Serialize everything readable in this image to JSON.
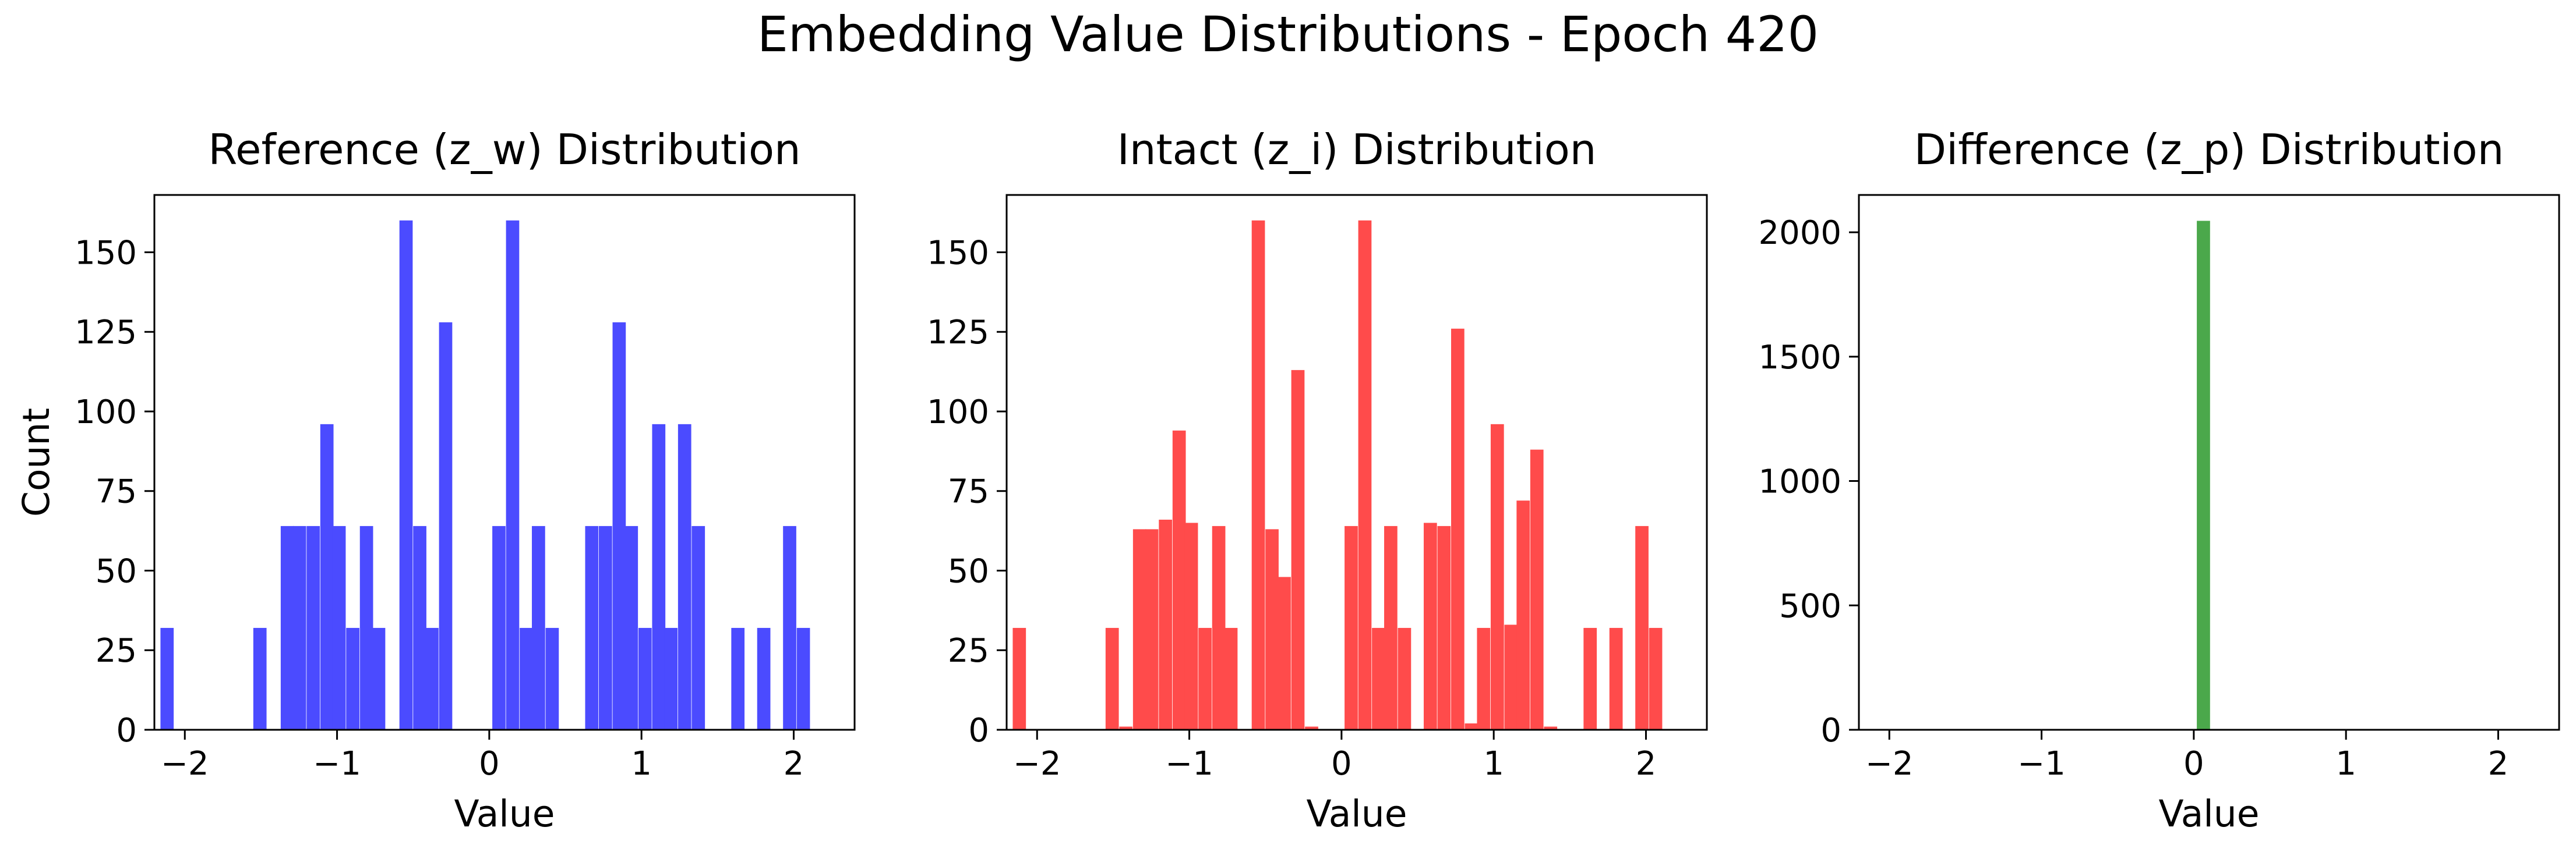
{
  "figure": {
    "suptitle": "Embedding Value Distributions - Epoch 420"
  },
  "chart_data": [
    {
      "type": "bar",
      "title": "Reference (z_w) Distribution",
      "xlabel": "Value",
      "ylabel": "Count",
      "color": "#4B4BFF",
      "xlim": [
        -2.2,
        2.4
      ],
      "ylim": [
        0,
        168
      ],
      "xticks": [
        -2,
        -1,
        0,
        1,
        2
      ],
      "xtick_labels": [
        "−2",
        "−1",
        "0",
        "1",
        "2"
      ],
      "yticks": [
        0,
        25,
        50,
        75,
        100,
        125,
        150
      ],
      "ytick_labels": [
        "0",
        "25",
        "50",
        "75",
        "100",
        "125",
        "150"
      ],
      "bin_width": 0.0869,
      "x": [
        -2.16,
        -1.55,
        -1.37,
        -1.29,
        -1.2,
        -1.11,
        -1.03,
        -0.94,
        -0.85,
        -0.77,
        -0.59,
        -0.5,
        -0.42,
        -0.33,
        0.02,
        0.11,
        0.2,
        0.28,
        0.37,
        0.63,
        0.72,
        0.81,
        0.89,
        0.98,
        1.07,
        1.15,
        1.24,
        1.33,
        1.59,
        1.76,
        1.93,
        2.02
      ],
      "values": [
        32,
        32,
        64,
        64,
        64,
        96,
        64,
        32,
        64,
        32,
        160,
        64,
        32,
        128,
        64,
        160,
        32,
        64,
        32,
        64,
        64,
        128,
        64,
        32,
        96,
        32,
        96,
        64,
        32,
        32,
        64,
        32
      ]
    },
    {
      "type": "bar",
      "title": "Intact (z_i) Distribution",
      "xlabel": "Value",
      "color": "#FF4B4B",
      "xlim": [
        -2.2,
        2.4
      ],
      "ylim": [
        0,
        168
      ],
      "xticks": [
        -2,
        -1,
        0,
        1,
        2
      ],
      "xtick_labels": [
        "−2",
        "−1",
        "0",
        "1",
        "2"
      ],
      "yticks": [
        0,
        25,
        50,
        75,
        100,
        125,
        150
      ],
      "ytick_labels": [
        "0",
        "25",
        "50",
        "75",
        "100",
        "125",
        "150"
      ],
      "bin_width": 0.0869,
      "x": [
        -2.16,
        -1.55,
        -1.46,
        -1.37,
        -1.29,
        -1.2,
        -1.11,
        -1.03,
        -0.94,
        -0.85,
        -0.77,
        -0.59,
        -0.5,
        -0.42,
        -0.33,
        -0.24,
        0.02,
        0.11,
        0.2,
        0.28,
        0.37,
        0.54,
        0.63,
        0.72,
        0.81,
        0.89,
        0.98,
        1.07,
        1.15,
        1.24,
        1.33,
        1.59,
        1.76,
        1.93,
        2.02
      ],
      "values": [
        32,
        32,
        1,
        63,
        63,
        66,
        94,
        65,
        32,
        64,
        32,
        160,
        63,
        48,
        113,
        1,
        64,
        160,
        32,
        64,
        32,
        65,
        64,
        126,
        2,
        32,
        96,
        33,
        72,
        88,
        1,
        32,
        32,
        64,
        32
      ]
    },
    {
      "type": "bar",
      "title": "Difference (z_p) Distribution",
      "xlabel": "Value",
      "color": "#4BA84B",
      "xlim": [
        -2.2,
        2.4
      ],
      "ylim": [
        0,
        2150
      ],
      "xticks": [
        -2,
        -1,
        0,
        1,
        2
      ],
      "xtick_labels": [
        "−2",
        "−1",
        "0",
        "1",
        "2"
      ],
      "yticks": [
        0,
        500,
        1000,
        1500,
        2000
      ],
      "ytick_labels": [
        "0",
        "500",
        "1000",
        "1500",
        "2000"
      ],
      "bin_width": 0.0869,
      "x": [
        -0.06,
        0.02
      ],
      "values": [
        2,
        2046
      ]
    }
  ]
}
